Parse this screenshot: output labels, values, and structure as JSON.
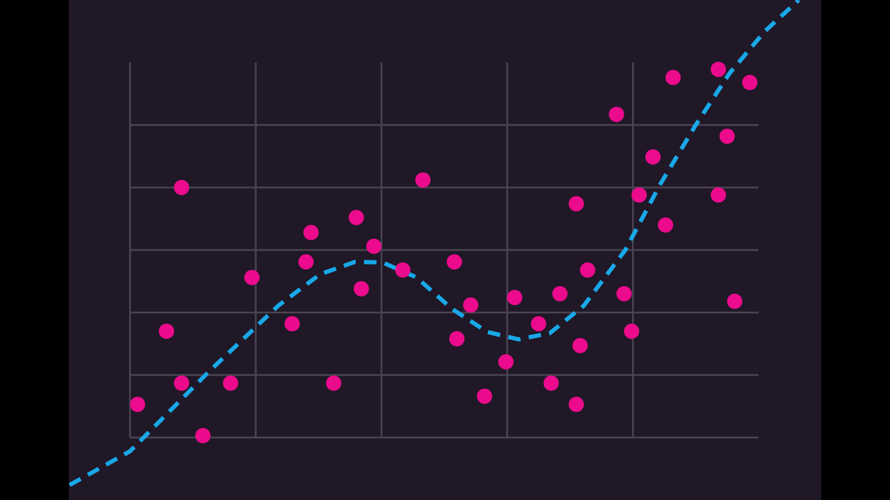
{
  "chart_data": {
    "type": "scatter",
    "xlim": [
      0,
      5
    ],
    "ylim": [
      0,
      6
    ],
    "xticks": [
      0,
      1,
      2,
      3,
      4
    ],
    "yticks": [
      0,
      1,
      2,
      3,
      4,
      5
    ],
    "grid": true,
    "series": [
      {
        "type": "scatter",
        "color": "#ec0b8c",
        "x": [
          0.06,
          0.29,
          0.41,
          0.41,
          0.58,
          0.8,
          0.97,
          1.29,
          1.4,
          1.44,
          1.62,
          1.8,
          1.84,
          1.94,
          2.17,
          2.33,
          2.58,
          2.6,
          2.71,
          2.82,
          2.99,
          3.06,
          3.25,
          3.35,
          3.42,
          3.55,
          3.55,
          3.58,
          3.64,
          3.87,
          3.93,
          3.99,
          4.05,
          4.16,
          4.26,
          4.32,
          4.68,
          4.68,
          4.75,
          4.81,
          4.93
        ],
        "values": [
          0.53,
          1.7,
          4.0,
          0.87,
          0.03,
          0.87,
          2.56,
          1.82,
          2.81,
          3.28,
          0.87,
          3.52,
          2.38,
          3.06,
          2.68,
          4.12,
          2.81,
          1.58,
          2.12,
          0.66,
          1.21,
          2.24,
          1.82,
          0.87,
          2.3,
          3.74,
          0.53,
          1.47,
          2.68,
          5.17,
          2.3,
          1.7,
          3.88,
          4.49,
          3.4,
          5.76,
          5.89,
          3.88,
          4.82,
          2.18,
          5.68
        ]
      },
      {
        "type": "line",
        "color": "#19a8e8",
        "dashed": true,
        "x": [
          -0.48,
          0,
          0.63,
          1.18,
          1.51,
          1.79,
          2.01,
          2.28,
          2.56,
          2.84,
          3.09,
          3.34,
          3.61,
          3.94,
          4.22,
          4.5,
          4.77,
          5.05,
          5.32
        ],
        "values": [
          -0.76,
          -0.22,
          1.06,
          2.11,
          2.61,
          2.81,
          2.8,
          2.56,
          2.06,
          1.69,
          1.57,
          1.67,
          2.11,
          3.0,
          4.06,
          5.0,
          5.83,
          6.5,
          7.0
        ]
      }
    ]
  }
}
